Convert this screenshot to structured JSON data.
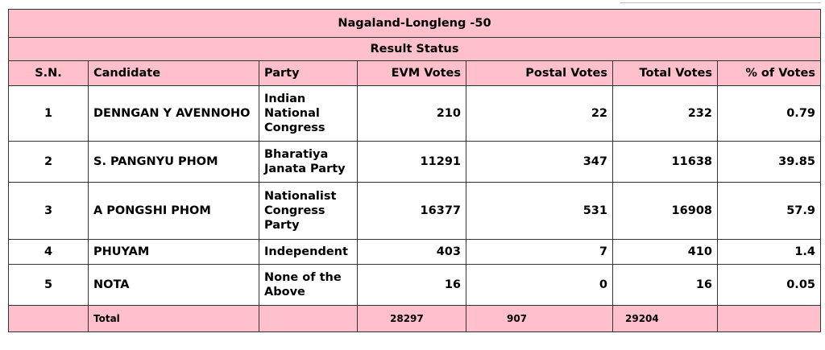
{
  "table": {
    "title": "Nagaland-Longleng -50",
    "subtitle": "Result Status",
    "headers": {
      "sn": "S.N.",
      "candidate": "Candidate",
      "party": "Party",
      "evm": "EVM Votes",
      "postal": "Postal Votes",
      "total": "Total Votes",
      "pct": "% of Votes"
    },
    "rows": [
      {
        "sn": "1",
        "candidate": "DENNGAN Y AVENNOHO",
        "party": "Indian National Congress",
        "evm": "210",
        "postal": "22",
        "total": "232",
        "pct": "0.79"
      },
      {
        "sn": "2",
        "candidate": "S. PANGNYU PHOM",
        "party": "Bharatiya Janata Party",
        "evm": "11291",
        "postal": "347",
        "total": "11638",
        "pct": "39.85"
      },
      {
        "sn": "3",
        "candidate": "A PONGSHI PHOM",
        "party": "Nationalist Congress Party",
        "evm": "16377",
        "postal": "531",
        "total": "16908",
        "pct": "57.9"
      },
      {
        "sn": "4",
        "candidate": "PHUYAM",
        "party": "Independent",
        "evm": "403",
        "postal": "7",
        "total": "410",
        "pct": "1.4"
      },
      {
        "sn": "5",
        "candidate": "NOTA",
        "party": "None of the Above",
        "evm": "16",
        "postal": "0",
        "total": "16",
        "pct": "0.05"
      }
    ],
    "totals": {
      "label": "Total",
      "evm": "28297",
      "postal": "907",
      "total": "29204"
    }
  },
  "colors": {
    "header_bg": "#ffc0cb",
    "border": "#333333"
  }
}
